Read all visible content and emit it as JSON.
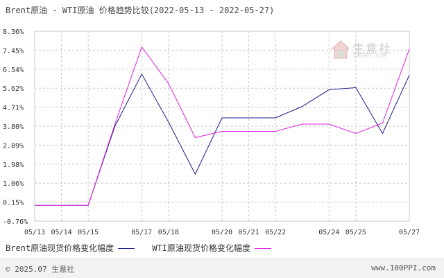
{
  "header": {
    "title": "Brent原油 - WTI原油 价格趋势比较(2022-05-13 - 2022-05-27)"
  },
  "watermark": {
    "name": "生意社",
    "site": "100PPI.COM"
  },
  "footer": {
    "copyright": "© 2025.07 生意社",
    "site": "www.100PPI.com"
  },
  "colors": {
    "brent": "#1a1a8c",
    "wti": "#e020e0",
    "grid": "#c8c8c8",
    "axis_text": "#333333"
  },
  "chart_data": {
    "type": "line",
    "y_ticks": [
      "8.36%",
      "7.45%",
      "6.54%",
      "5.62%",
      "4.71%",
      "3.80%",
      "2.89%",
      "1.98%",
      "1.06%",
      "0.15%",
      "-0.76%"
    ],
    "ylim": [
      -0.76,
      8.36
    ],
    "x_tick_labels": [
      "05/13",
      "05/14",
      "05/15",
      "05/17",
      "05/18",
      "05/20",
      "05/21",
      "05/22",
      "05/24",
      "05/25",
      "05/27"
    ],
    "x": [
      "05/13",
      "05/14",
      "05/15",
      "05/16",
      "05/17",
      "05/18",
      "05/19",
      "05/20",
      "05/21",
      "05/22",
      "05/23",
      "05/24",
      "05/25",
      "05/26",
      "05/27"
    ],
    "series": [
      {
        "name": "Brent原油现货价格变化幅度",
        "color": "#1a1a8c",
        "values": [
          0,
          0,
          0,
          3.8,
          6.3,
          4.0,
          1.5,
          4.2,
          4.2,
          4.2,
          4.75,
          5.55,
          5.65,
          3.45,
          6.25
        ]
      },
      {
        "name": "WTI原油现货价格变化幅度",
        "color": "#e020e0",
        "values": [
          0,
          0,
          0,
          3.9,
          7.6,
          5.85,
          3.25,
          3.55,
          3.55,
          3.55,
          3.9,
          3.9,
          3.45,
          3.95,
          7.5
        ]
      }
    ]
  }
}
